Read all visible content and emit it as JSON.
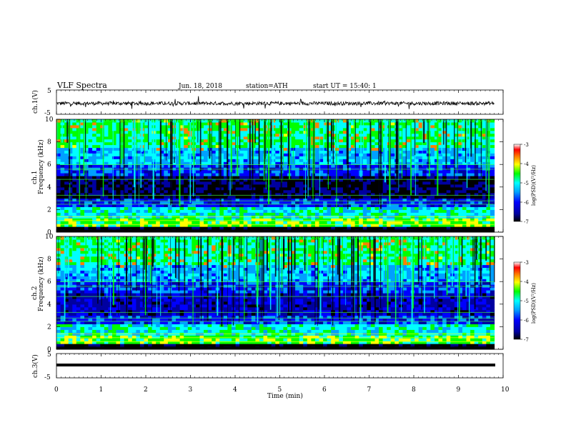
{
  "header": {
    "title": "VLF Spectra",
    "date": "Jun. 18, 2018",
    "station": "station=ATH",
    "start": "start UT = 15:40: 1"
  },
  "colors": {
    "background": "#ffffff",
    "waveform": "#000000",
    "colormap": [
      "#000000",
      "#0000a0",
      "#0000ff",
      "#00a0ff",
      "#00ffff",
      "#00ff00",
      "#ffff00",
      "#ff8000",
      "#ff0000",
      "#ffffff"
    ]
  },
  "chart_data": [
    {
      "type": "line",
      "panel": "ch1-waveform",
      "ylabel": "ch.1(V)",
      "ylim": [
        -5,
        5
      ],
      "y_tick_labels": [
        "5",
        "-5"
      ],
      "x_range_min": [
        0,
        9.8
      ],
      "description_values": {
        "baseline_v": -0.5,
        "amplitude_v": 1.5
      }
    },
    {
      "type": "heatmap",
      "panel": "ch1-spectrogram",
      "ylabel": "ch.1\nFrequency (kHz)",
      "ylim": [
        0,
        10
      ],
      "y_tick_labels": [
        "0",
        "2",
        "4",
        "6",
        "8",
        "10"
      ],
      "x_range_min": [
        0,
        9.8
      ],
      "colorbar": {
        "label": "log(PSD)(V²/Hz)",
        "range": [
          -7,
          -3
        ],
        "tick_labels": [
          "-3",
          "-4",
          "-5",
          "-6",
          "-7"
        ]
      }
    },
    {
      "type": "heatmap",
      "panel": "ch2-spectrogram",
      "ylabel": "ch.2\nFrequency (kHz)",
      "ylim": [
        0,
        10
      ],
      "y_tick_labels": [
        "0",
        "2",
        "4",
        "6",
        "8",
        "10"
      ],
      "x_range_min": [
        0,
        9.8
      ],
      "colorbar": {
        "label": "log(PSD)(V²/Hz)",
        "range": [
          -7,
          -3
        ],
        "tick_labels": [
          "-3",
          "-4",
          "-5",
          "-6",
          "-7"
        ]
      }
    },
    {
      "type": "line",
      "panel": "ch3-waveform",
      "ylabel": "ch.3(V)",
      "ylim": [
        -5,
        5
      ],
      "y_tick_labels": [
        "5",
        "-5"
      ],
      "x_range_min": [
        0,
        9.8
      ],
      "description_values": {
        "baseline_v": -1.4,
        "amplitude_v": 0.1
      }
    }
  ],
  "x_axis": {
    "label": "Time (min)",
    "xlim": [
      0,
      10
    ],
    "tick_labels": [
      "0",
      "1",
      "2",
      "3",
      "4",
      "5",
      "6",
      "7",
      "8",
      "9",
      "10"
    ]
  },
  "y_labels": {
    "ch1_wave": "ch.1(V)",
    "ch1_spec_top": "ch.1",
    "ch1_spec": "Frequency (kHz)",
    "ch2_spec_top": "ch.2",
    "ch2_spec": "Frequency (kHz)",
    "ch3_wave": "ch.3(V)"
  },
  "colorbar_label": "log(PSD)(V²/Hz)"
}
